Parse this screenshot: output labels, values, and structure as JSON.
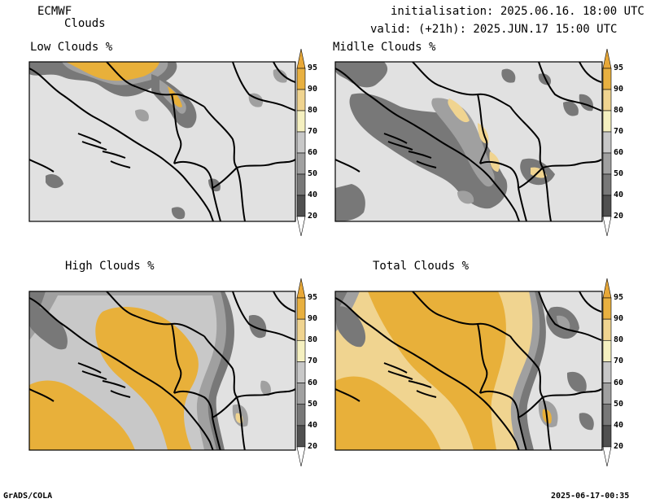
{
  "header": {
    "source": "ECMWF",
    "product": "Clouds",
    "init_line": "initialisation: 2025.06.16. 18:00 UTC",
    "valid_line": "valid: (+21h): 2025.JUN.17 15:00 UTC"
  },
  "panels": [
    {
      "title": "Low Clouds %"
    },
    {
      "title": "Midlle Clouds %"
    },
    {
      "title": "High Clouds %"
    },
    {
      "title": "Total Clouds %"
    }
  ],
  "colorbar": {
    "tick_labels": [
      "20",
      "40",
      "50",
      "60",
      "70",
      "80",
      "90",
      "95"
    ],
    "colors": {
      "lt20": "#ffffff",
      "20-40": "#505050",
      "40-50": "#787878",
      "50-60": "#a0a0a0",
      "60-70": "#c8c8c8",
      "70-80": "#f5f0c0",
      "80-90": "#f0d490",
      "90-95": "#e8b040",
      "gt95": "#e8a838"
    }
  },
  "footer": {
    "left": "GrADS/COLA",
    "right": "2025-06-17-00:35"
  },
  "colors": {
    "map_background": "#e1e1e1",
    "cloud_yellow": "#e8b03a",
    "boundary": "#000000"
  }
}
